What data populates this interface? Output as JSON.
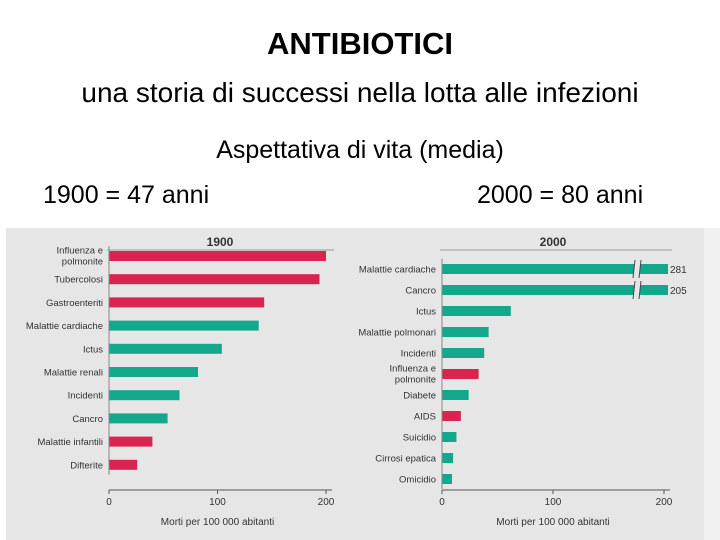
{
  "slide": {
    "title": "ANTIBIOTICI",
    "subtitle": "una storia di successi nella lotta alle infezioni",
    "heading": "Aspettativa di vita (media)",
    "left_caption": "1900 = 47 anni",
    "right_caption": "2000 = 80 anni"
  },
  "colors": {
    "infectious": "#d8244e",
    "non_infectious": "#13a88c",
    "panel_bg": "#e6e6e6",
    "axis": "#555555",
    "tick_text": "#333333"
  },
  "chart_data": [
    {
      "type": "bar",
      "orientation": "horizontal",
      "title": "1900",
      "xlabel": "Morti per 100 000 abitanti",
      "xlim": [
        0,
        200
      ],
      "xticks": [
        0,
        100,
        200
      ],
      "grid": false,
      "categories": [
        "Influenza e polmonite",
        "Tubercolosi",
        "Gastroenteriti",
        "Malattie cardiache",
        "Ictus",
        "Malattie renali",
        "Incidenti",
        "Cancro",
        "Malattie infantili",
        "Difterite"
      ],
      "category_lines": [
        [
          "Influenza e",
          "polmonite"
        ],
        [
          "Tubercolosi"
        ],
        [
          "Gastroenteriti"
        ],
        [
          "Malattie cardiache"
        ],
        [
          "Ictus"
        ],
        [
          "Malattie renali"
        ],
        [
          "Incidenti"
        ],
        [
          "Cancro"
        ],
        [
          "Malattie infantili"
        ],
        [
          "Difterite"
        ]
      ],
      "values": [
        202,
        194,
        143,
        138,
        104,
        82,
        65,
        54,
        40,
        26
      ],
      "infectious": [
        true,
        true,
        true,
        false,
        false,
        false,
        false,
        false,
        true,
        true
      ],
      "value_labels": [
        "",
        "",
        "",
        "",
        "",
        "",
        "",
        "",
        "",
        ""
      ],
      "broken": [
        false,
        false,
        false,
        false,
        false,
        false,
        false,
        false,
        false,
        false
      ]
    },
    {
      "type": "bar",
      "orientation": "horizontal",
      "title": "2000",
      "xlabel": "Morti per 100 000 abitanti",
      "xlim": [
        0,
        200
      ],
      "xticks": [
        0,
        100,
        200
      ],
      "grid": false,
      "categories": [
        "Malattie cardiache",
        "Cancro",
        "Ictus",
        "Malattie polmonari",
        "Incidenti",
        "Influenza e polmonite",
        "Diabete",
        "AIDS",
        "Suicidio",
        "Cirrosi epatica",
        "Omicidio"
      ],
      "category_lines": [
        [
          "Malattie cardiache"
        ],
        [
          "Cancro"
        ],
        [
          "Ictus"
        ],
        [
          "Malattie polmonari"
        ],
        [
          "Incidenti"
        ],
        [
          "Influenza e",
          "polmonite"
        ],
        [
          "Diabete"
        ],
        [
          "AIDS"
        ],
        [
          "Suicidio"
        ],
        [
          "Cirrosi epatica"
        ],
        [
          "Omicidio"
        ]
      ],
      "values": [
        281,
        205,
        62,
        42,
        38,
        33,
        24,
        17,
        13,
        10,
        9
      ],
      "infectious": [
        false,
        false,
        false,
        false,
        false,
        true,
        false,
        true,
        false,
        false,
        false
      ],
      "value_labels": [
        "281",
        "205",
        "",
        "",
        "",
        "",
        "",
        "",
        "",
        "",
        ""
      ],
      "broken": [
        true,
        true,
        false,
        false,
        false,
        false,
        false,
        false,
        false,
        false,
        false
      ]
    }
  ]
}
